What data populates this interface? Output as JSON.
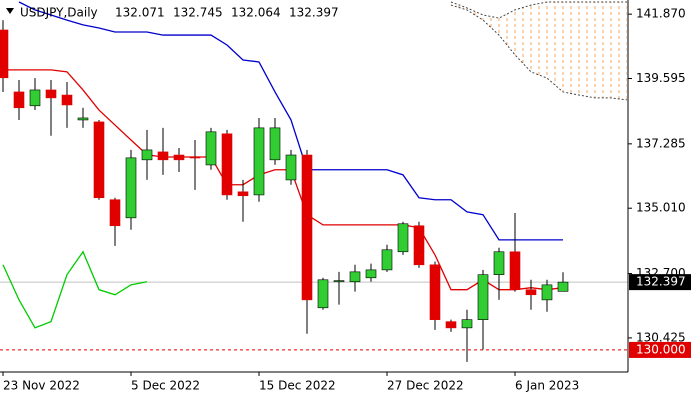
{
  "chart_data": {
    "type": "candlestick",
    "symbol": "USDJPY,Daily",
    "ohlc_header": [
      132.071,
      132.745,
      132.064,
      132.397
    ],
    "categories": [
      "23 Nov 2022",
      null,
      null,
      null,
      null,
      null,
      null,
      null,
      "5 Dec 2022",
      null,
      null,
      null,
      null,
      null,
      null,
      null,
      "15 Dec 2022",
      null,
      null,
      null,
      null,
      null,
      null,
      null,
      "27 Dec 2022",
      null,
      null,
      null,
      null,
      null,
      null,
      null,
      "6 Jan 2023",
      null,
      null,
      null,
      null,
      null,
      null,
      null
    ],
    "open": [
      141.31,
      139.12,
      138.63,
      139.19,
      139.01,
      138.13,
      138.06,
      135.31,
      134.67,
      136.72,
      137.0,
      136.89,
      136.82,
      136.54,
      137.64,
      135.59,
      135.48,
      136.72,
      136.01,
      136.89,
      131.49,
      132.41,
      132.41,
      132.55,
      132.83,
      133.47,
      134.39,
      133.01,
      131.0,
      130.78,
      131.07,
      132.66,
      133.47,
      132.13,
      131.77,
      132.071,
      null,
      null,
      null,
      null
    ],
    "high": [
      141.66,
      139.54,
      139.61,
      139.54,
      139.47,
      138.56,
      138.13,
      135.38,
      137.07,
      137.78,
      137.85,
      137.14,
      137.42,
      137.85,
      137.78,
      136.01,
      138.2,
      138.2,
      137.07,
      137.07,
      132.55,
      132.76,
      133.01,
      133.05,
      133.72,
      134.53,
      134.53,
      133.12,
      131.07,
      131.42,
      132.83,
      133.61,
      134.84,
      132.48,
      132.48,
      132.745,
      null,
      null,
      null,
      null
    ],
    "low": [
      139.12,
      138.13,
      138.48,
      137.57,
      137.85,
      137.85,
      135.31,
      133.68,
      134.25,
      136.01,
      136.19,
      136.29,
      135.66,
      136.37,
      135.31,
      134.53,
      135.24,
      136.54,
      135.84,
      130.57,
      131.42,
      131.6,
      132.06,
      132.41,
      132.76,
      133.36,
      132.9,
      130.71,
      130.64,
      129.58,
      130.01,
      131.77,
      132.06,
      131.42,
      131.35,
      132.064,
      null,
      null,
      null,
      null
    ],
    "close": [
      139.62,
      138.56,
      139.19,
      138.91,
      138.66,
      138.2,
      135.38,
      134.39,
      136.79,
      137.07,
      136.72,
      136.72,
      136.79,
      137.71,
      135.48,
      135.45,
      137.85,
      137.85,
      136.89,
      131.77,
      132.48,
      132.45,
      132.76,
      132.83,
      133.54,
      134.46,
      133.01,
      131.07,
      130.78,
      131.07,
      132.66,
      133.47,
      132.13,
      131.95,
      132.3,
      132.397,
      null,
      null,
      null,
      null
    ],
    "up_color": "#32cd32",
    "down_color": "#e00000",
    "lines": [
      {
        "color": "#e00000",
        "values": [
          139.9,
          139.9,
          139.9,
          139.9,
          139.83,
          139.19,
          138.48,
          137.95,
          137.42,
          136.9,
          136.82,
          136.82,
          136.82,
          136.82,
          135.84,
          135.84,
          136.19,
          136.37,
          136.37,
          134.78,
          134.42,
          134.42,
          134.42,
          134.42,
          134.42,
          134.42,
          134.32,
          133.36,
          132.13,
          132.13,
          132.48,
          132.13,
          132.13,
          132.2,
          132.13,
          132.2,
          null,
          null,
          null,
          null
        ]
      },
      {
        "color": "#0000cc",
        "values": [
          null,
          142.3,
          142.02,
          141.84,
          141.66,
          141.49,
          141.38,
          141.24,
          141.24,
          141.24,
          141.13,
          141.13,
          141.13,
          141.13,
          140.78,
          140.25,
          140.18,
          139.12,
          138.13,
          136.37,
          136.37,
          136.37,
          136.37,
          136.37,
          136.37,
          136.19,
          135.38,
          135.31,
          135.31,
          134.88,
          134.78,
          133.89,
          133.89,
          133.89,
          133.89,
          133.89,
          null,
          null,
          null,
          null
        ]
      },
      {
        "color": "#00cc00",
        "values": [
          133.01,
          131.77,
          130.78,
          131.0,
          132.66,
          133.47,
          132.13,
          131.95,
          132.3,
          132.41,
          null,
          null,
          null,
          null,
          null,
          null,
          null,
          null,
          null,
          null,
          null,
          null,
          null,
          null,
          null,
          null,
          null,
          null,
          null,
          null,
          null,
          null,
          null,
          null,
          null,
          null,
          null,
          null,
          null,
          null
        ]
      }
    ],
    "cloud": {
      "color": "#f4a460",
      "span_a": [
        null,
        null,
        null,
        null,
        null,
        null,
        null,
        null,
        null,
        null,
        null,
        null,
        null,
        null,
        null,
        null,
        null,
        null,
        null,
        null,
        null,
        null,
        null,
        null,
        null,
        null,
        null,
        null,
        142.3,
        142.09,
        141.84,
        141.73,
        142.02,
        142.19,
        142.3,
        142.3,
        142.3,
        142.3,
        142.3,
        142.3
      ],
      "span_b": [
        null,
        null,
        null,
        null,
        null,
        null,
        null,
        null,
        null,
        null,
        null,
        null,
        null,
        null,
        null,
        null,
        null,
        null,
        null,
        null,
        null,
        null,
        null,
        null,
        null,
        null,
        null,
        null,
        142.19,
        142.02,
        141.66,
        141.13,
        140.43,
        139.83,
        139.61,
        139.12,
        139.01,
        138.91,
        138.91,
        138.84
      ]
    },
    "ylim": [
      129.22,
      142.37
    ],
    "yticks": [
      {
        "value": 141.87,
        "label": "141.870"
      },
      {
        "value": 139.595,
        "label": "139.595"
      },
      {
        "value": 137.285,
        "label": "137.285"
      },
      {
        "value": 135.01,
        "label": "135.010"
      },
      {
        "value": 132.7,
        "label": "132.700"
      },
      {
        "value": 130.425,
        "label": "130.425"
      }
    ],
    "price_line": 132.397,
    "alert_line": {
      "value": 130,
      "label": "130.000",
      "color": "#e00000"
    }
  }
}
